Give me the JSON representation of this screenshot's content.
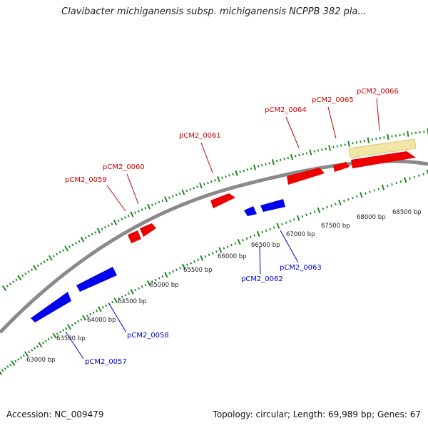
{
  "title": "Clavibacter michiganensis subsp. michiganensis NCPPB 382 pla...",
  "accession_text": "Accession: NC_009479",
  "summary_text": "Topology: circular; Length: 69,989 bp; Genes: 67",
  "colors": {
    "backbone": "#8a8a8a",
    "forward_gene": "#ee0000",
    "reverse_gene": "#0000ee",
    "feature_band": "#f2e6a6",
    "ticks": "#1a8a1a",
    "forward_label": "#cc0000",
    "reverse_label": "#0000cc"
  },
  "scale_labels": [
    "63000 bp",
    "63500 bp",
    "64000 bp",
    "64500 bp",
    "65000 bp",
    "65500 bp",
    "66000 bp",
    "66500 bp",
    "67000 bp",
    "67500 bp",
    "68000 bp",
    "68500 bp"
  ],
  "genes_forward": [
    "pCM2_0059",
    "pCM2_0060",
    "pCM2_0061",
    "pCM2_0064",
    "pCM2_0065",
    "pCM2_0066"
  ],
  "genes_reverse": [
    "pCM2_0057",
    "pCM2_0058",
    "pCM2_0062",
    "pCM2_0063"
  ]
}
